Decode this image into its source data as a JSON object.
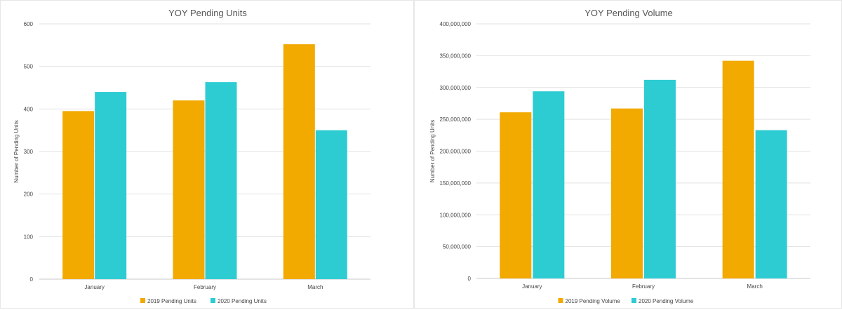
{
  "colors": {
    "series_2019": "#f2a900",
    "series_2020": "#2dccd3"
  },
  "chart_data": [
    {
      "type": "bar",
      "title": "YOY Pending Units",
      "xlabel": "",
      "ylabel": "Number of Pending Units",
      "categories": [
        "January",
        "February",
        "March"
      ],
      "ylim": [
        0,
        600
      ],
      "yticks": [
        0,
        100,
        200,
        300,
        400,
        500,
        600
      ],
      "ytick_labels": [
        "0",
        "100",
        "200",
        "300",
        "400",
        "500",
        "600"
      ],
      "grid": true,
      "legend_position": "bottom",
      "series": [
        {
          "name": "2019 Pending Units",
          "values": [
            395,
            420,
            552
          ]
        },
        {
          "name": "2020 Pending Units",
          "values": [
            440,
            463,
            350
          ]
        }
      ]
    },
    {
      "type": "bar",
      "title": "YOY Pending Volume",
      "xlabel": "",
      "ylabel": "Number of Pending Units",
      "categories": [
        "January",
        "February",
        "March"
      ],
      "ylim": [
        0,
        400000000
      ],
      "yticks": [
        0,
        50000000,
        100000000,
        150000000,
        200000000,
        250000000,
        300000000,
        350000000,
        400000000
      ],
      "ytick_labels": [
        "0",
        "50,000,000",
        "100,000,000",
        "150,000,000",
        "200,000,000",
        "250,000,000",
        "300,000,000",
        "350,000,000",
        "400,000,000"
      ],
      "grid": true,
      "legend_position": "bottom",
      "series": [
        {
          "name": "2019 Pending Volume",
          "values": [
            261000000,
            267000000,
            342000000
          ]
        },
        {
          "name": "2020 Pending Volume",
          "values": [
            294000000,
            312000000,
            233000000
          ]
        }
      ]
    }
  ]
}
